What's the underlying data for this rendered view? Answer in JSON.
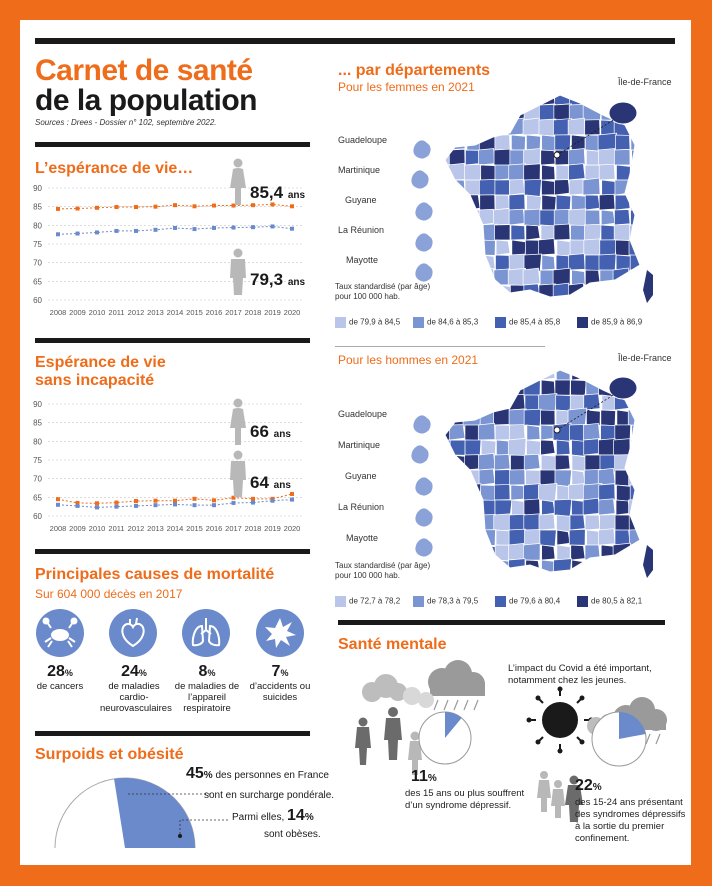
{
  "header": {
    "title_line1": "Carnet de santé",
    "title_line2": "de la population",
    "sources": "Sources : Drees - Dossier n° 102, septembre 2022."
  },
  "life_expectancy": {
    "title": "L’espérance de vie…",
    "women_value": "85,4",
    "men_value": "79,3",
    "unit": "ans"
  },
  "healthy_life": {
    "title_line1": "Espérance de vie",
    "title_line2": "sans incapacité",
    "women_value": "66",
    "men_value": "64",
    "unit": "ans"
  },
  "chart_data": [
    {
      "type": "line",
      "x": [
        "2008",
        "2009",
        "2010",
        "2011",
        "2012",
        "2013",
        "2014",
        "2015",
        "2016",
        "2017",
        "2018",
        "2019",
        "2020"
      ],
      "ylim": [
        60,
        90
      ],
      "yticks": [
        60,
        65,
        70,
        75,
        80,
        85,
        90
      ],
      "series": [
        {
          "color": "#ee6c1a",
          "values": [
            84.4,
            84.5,
            84.7,
            84.9,
            84.9,
            85.0,
            85.4,
            85.1,
            85.3,
            85.3,
            85.4,
            85.6,
            85.1
          ]
        },
        {
          "color": "#6b8acb",
          "values": [
            77.6,
            77.8,
            78.1,
            78.5,
            78.5,
            78.8,
            79.3,
            79.0,
            79.3,
            79.4,
            79.5,
            79.7,
            79.1
          ]
        }
      ]
    },
    {
      "type": "line",
      "x": [
        "2008",
        "2009",
        "2010",
        "2011",
        "2012",
        "2013",
        "2014",
        "2015",
        "2016",
        "2017",
        "2018",
        "2019",
        "2020"
      ],
      "ylim": [
        60,
        90
      ],
      "yticks": [
        60,
        65,
        70,
        75,
        80,
        85,
        90
      ],
      "series": [
        {
          "color": "#ee6c1a",
          "values": [
            64.5,
            63.5,
            63.4,
            63.6,
            64.0,
            64.1,
            64.1,
            64.6,
            64.2,
            64.9,
            64.6,
            64.6,
            65.9
          ]
        },
        {
          "color": "#6b8acb",
          "values": [
            63.0,
            62.7,
            62.3,
            62.5,
            62.7,
            62.9,
            63.1,
            62.9,
            62.9,
            63.5,
            63.6,
            64.1,
            64.4
          ]
        }
      ]
    }
  ],
  "mortality": {
    "title": "Principales causes de mortalité",
    "subtitle": "Sur 604 000 décès en 2017",
    "causes": [
      {
        "pct": "28",
        "label": "de cancers",
        "icon": "crab-icon"
      },
      {
        "pct": "24",
        "label": "de maladies cardio- neurovasculaires",
        "icon": "heart-icon"
      },
      {
        "pct": "8",
        "label": "de maladies de l’appareil respiratoire",
        "icon": "lungs-icon"
      },
      {
        "pct": "7",
        "label": "d’accidents ou suicides",
        "icon": "explosion-icon"
      }
    ],
    "pct_sign": "%"
  },
  "obesity": {
    "title": "Surpoids et obésité",
    "overweight_pct": "45",
    "overweight_text1": "des personnes en France",
    "overweight_text2": "sont en surcharge pondérale.",
    "obese_prefix": "Parmi elles,",
    "obese_pct": "14",
    "obese_text": "sont obèses.",
    "overweight_share": 0.45,
    "obese_share_of_overweight": 0.14
  },
  "maps": {
    "title": "... par départements",
    "women_subtitle": "Pour les femmes en 2021",
    "men_subtitle": "Pour les hommes en 2021",
    "idf_label": "Île-de-France",
    "dom": [
      "Guadeloupe",
      "Martinique",
      "Guyane",
      "La Réunion",
      "Mayotte"
    ],
    "legend_title_line1": "Taux standardisé (par âge)",
    "legend_title_line2": "pour 100 000 hab.",
    "colors": [
      "#b9c6ea",
      "#7b95d2",
      "#4460b0",
      "#2a3575"
    ],
    "women_legend": [
      "de 79,9 à 84,5",
      "de 84,6 à 85,3",
      "de 85,4 à 85,8",
      "de 85,9 à 86,9"
    ],
    "men_legend": [
      "de 72,7 à 78,2",
      "de 78,3 à 79,5",
      "de 79,6 à 80,4",
      "de 80,5 à 82,1"
    ]
  },
  "mental": {
    "title": "Santé mentale",
    "covid_text1": "L’impact du Covid a été important,",
    "covid_text2": "notamment chez les jeunes.",
    "adult_pct": "11",
    "adult_text1": "des 15 ans ou plus souffrent",
    "adult_text2": "d’un syndrome dépressif.",
    "young_pct": "22",
    "young_text1": "des 15-24 ans présentant",
    "young_text2": "des syndromes dépressifs",
    "young_text3": "à la sortie du premier",
    "young_text4": "confinement.",
    "adult_share": 0.11,
    "young_share": 0.22
  }
}
